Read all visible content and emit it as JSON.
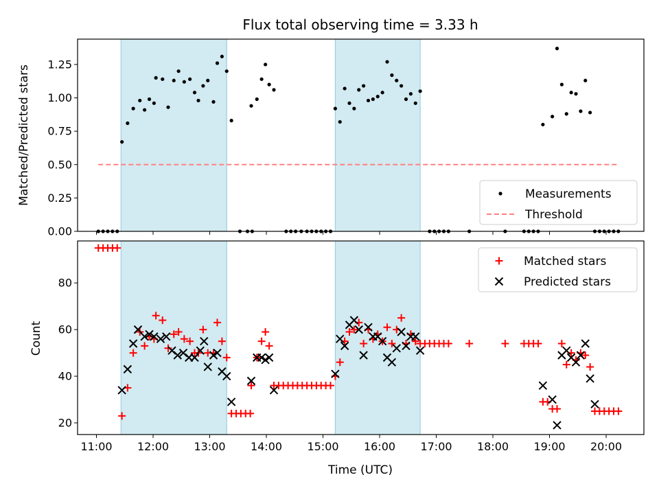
{
  "chart_data": [
    {
      "type": "scatter",
      "title": "Flux total observing time = 3.33 h",
      "xlabel": "",
      "ylabel": "Matched/Predicted stars",
      "xlim": [
        "10:40",
        "20:40"
      ],
      "ylim": [
        0,
        1.44
      ],
      "y_ticks": [
        "0.00",
        "0.25",
        "0.50",
        "0.75",
        "1.00",
        "1.25"
      ],
      "shaded_intervals": [
        [
          "11:26",
          "13:18"
        ],
        [
          "15:13",
          "16:43"
        ]
      ],
      "shade_color": "#add8e6",
      "legend_position": "lower-right",
      "series": [
        {
          "name": "Measurements",
          "marker": "dot",
          "color": "#000000",
          "points": [
            [
              "11:02",
              0
            ],
            [
              "11:07",
              0
            ],
            [
              "11:12",
              0
            ],
            [
              "11:17",
              0
            ],
            [
              "11:22",
              0
            ],
            [
              "11:27",
              0.67
            ],
            [
              "11:33",
              0.81
            ],
            [
              "11:39",
              0.92
            ],
            [
              "11:46",
              0.98
            ],
            [
              "11:51",
              0.91
            ],
            [
              "11:56",
              0.99
            ],
            [
              "12:01",
              0.96
            ],
            [
              "12:03",
              1.15
            ],
            [
              "12:10",
              1.14
            ],
            [
              "12:16",
              0.93
            ],
            [
              "12:22",
              1.13
            ],
            [
              "12:27",
              1.2
            ],
            [
              "12:33",
              1.12
            ],
            [
              "12:39",
              1.14
            ],
            [
              "12:44",
              1.04
            ],
            [
              "12:48",
              0.98
            ],
            [
              "12:53",
              1.09
            ],
            [
              "12:58",
              1.13
            ],
            [
              "13:04",
              0.97
            ],
            [
              "13:08",
              1.26
            ],
            [
              "13:13",
              1.31
            ],
            [
              "13:18",
              1.2
            ],
            [
              "13:23",
              0.83
            ],
            [
              "13:32",
              0
            ],
            [
              "13:40",
              0
            ],
            [
              "13:45",
              0
            ],
            [
              "13:44",
              0.94
            ],
            [
              "13:50",
              0.99
            ],
            [
              "13:55",
              1.14
            ],
            [
              "13:59",
              1.25
            ],
            [
              "14:03",
              1.1
            ],
            [
              "14:08",
              1.06
            ],
            [
              "14:21",
              0
            ],
            [
              "14:26",
              0
            ],
            [
              "14:31",
              0
            ],
            [
              "14:37",
              0
            ],
            [
              "14:43",
              0
            ],
            [
              "14:48",
              0
            ],
            [
              "14:53",
              0
            ],
            [
              "14:58",
              0
            ],
            [
              "15:03",
              0
            ],
            [
              "15:08",
              0
            ],
            [
              "15:13",
              0.92
            ],
            [
              "15:18",
              0.82
            ],
            [
              "15:23",
              1.07
            ],
            [
              "15:28",
              0.96
            ],
            [
              "15:33",
              0.92
            ],
            [
              "15:38",
              1.06
            ],
            [
              "15:43",
              1.09
            ],
            [
              "15:48",
              0.98
            ],
            [
              "15:53",
              0.99
            ],
            [
              "15:58",
              1.01
            ],
            [
              "16:03",
              1.04
            ],
            [
              "16:08",
              1.27
            ],
            [
              "16:13",
              1.17
            ],
            [
              "16:18",
              1.13
            ],
            [
              "16:23",
              1.09
            ],
            [
              "16:28",
              0.99
            ],
            [
              "16:33",
              1.03
            ],
            [
              "16:38",
              0.96
            ],
            [
              "16:43",
              1.05
            ],
            [
              "16:53",
              0
            ],
            [
              "16:58",
              0
            ],
            [
              "17:03",
              0
            ],
            [
              "17:08",
              0
            ],
            [
              "17:13",
              0
            ],
            [
              "17:35",
              0
            ],
            [
              "18:13",
              0
            ],
            [
              "18:33",
              0
            ],
            [
              "18:38",
              0
            ],
            [
              "18:43",
              0
            ],
            [
              "18:48",
              0
            ],
            [
              "18:53",
              0.8
            ],
            [
              "19:03",
              0.86
            ],
            [
              "19:08",
              1.37
            ],
            [
              "19:13",
              1.1
            ],
            [
              "19:18",
              0.88
            ],
            [
              "19:23",
              1.04
            ],
            [
              "19:28",
              1.03
            ],
            [
              "19:33",
              0.9
            ],
            [
              "19:38",
              1.13
            ],
            [
              "19:43",
              0.89
            ],
            [
              "19:48",
              0
            ],
            [
              "19:53",
              0
            ],
            [
              "19:58",
              0
            ],
            [
              "20:03",
              0
            ],
            [
              "20:08",
              0
            ],
            [
              "20:13",
              0
            ]
          ]
        },
        {
          "name": "Threshold",
          "marker": "dashed-line",
          "color": "#ff8080",
          "points": [
            [
              "11:02",
              0.5
            ],
            [
              "20:13",
              0.5
            ]
          ]
        }
      ]
    },
    {
      "type": "scatter",
      "title": "",
      "xlabel": "Time (UTC)",
      "ylabel": "Count",
      "xlim": [
        "10:40",
        "20:40"
      ],
      "ylim": [
        15,
        98
      ],
      "y_ticks": [
        "20",
        "40",
        "60",
        "80"
      ],
      "x_ticks": [
        "11:00",
        "12:00",
        "13:00",
        "14:00",
        "15:00",
        "16:00",
        "17:00",
        "18:00",
        "19:00",
        "20:00"
      ],
      "shaded_intervals": [
        [
          "11:26",
          "13:18"
        ],
        [
          "15:13",
          "16:43"
        ]
      ],
      "shade_color": "#add8e6",
      "legend_position": "upper-right",
      "series": [
        {
          "name": "Matched stars",
          "marker": "plus",
          "color": "#ff0000",
          "points": [
            [
              "11:02",
              95
            ],
            [
              "11:07",
              95
            ],
            [
              "11:12",
              95
            ],
            [
              "11:17",
              95
            ],
            [
              "11:22",
              95
            ],
            [
              "11:27",
              23
            ],
            [
              "11:33",
              35
            ],
            [
              "11:39",
              50
            ],
            [
              "11:46",
              59
            ],
            [
              "11:51",
              53
            ],
            [
              "11:56",
              57
            ],
            [
              "12:01",
              56
            ],
            [
              "12:03",
              66
            ],
            [
              "12:10",
              64
            ],
            [
              "12:16",
              52
            ],
            [
              "12:22",
              58
            ],
            [
              "12:27",
              59
            ],
            [
              "12:33",
              56
            ],
            [
              "12:39",
              55
            ],
            [
              "12:44",
              50
            ],
            [
              "12:48",
              50
            ],
            [
              "12:53",
              60
            ],
            [
              "12:58",
              50
            ],
            [
              "13:04",
              50
            ],
            [
              "13:08",
              63
            ],
            [
              "13:13",
              55
            ],
            [
              "13:18",
              48
            ],
            [
              "13:23",
              24
            ],
            [
              "13:28",
              24
            ],
            [
              "13:33",
              24
            ],
            [
              "13:38",
              24
            ],
            [
              "13:43",
              24
            ],
            [
              "13:44",
              36
            ],
            [
              "13:50",
              48
            ],
            [
              "13:55",
              55
            ],
            [
              "13:59",
              59
            ],
            [
              "14:03",
              53
            ],
            [
              "14:08",
              36
            ],
            [
              "14:13",
              36
            ],
            [
              "14:18",
              36
            ],
            [
              "14:23",
              36
            ],
            [
              "14:28",
              36
            ],
            [
              "14:33",
              36
            ],
            [
              "14:38",
              36
            ],
            [
              "14:43",
              36
            ],
            [
              "14:48",
              36
            ],
            [
              "14:53",
              36
            ],
            [
              "14:58",
              36
            ],
            [
              "15:03",
              36
            ],
            [
              "15:08",
              36
            ],
            [
              "15:13",
              40
            ],
            [
              "15:18",
              46
            ],
            [
              "15:23",
              55
            ],
            [
              "15:28",
              59
            ],
            [
              "15:33",
              60
            ],
            [
              "15:38",
              63
            ],
            [
              "15:43",
              54
            ],
            [
              "15:48",
              60
            ],
            [
              "15:53",
              56
            ],
            [
              "15:58",
              58
            ],
            [
              "16:03",
              55
            ],
            [
              "16:08",
              61
            ],
            [
              "16:13",
              54
            ],
            [
              "16:18",
              60
            ],
            [
              "16:23",
              65
            ],
            [
              "16:28",
              54
            ],
            [
              "16:33",
              58
            ],
            [
              "16:38",
              55
            ],
            [
              "16:43",
              54
            ],
            [
              "16:48",
              54
            ],
            [
              "16:53",
              54
            ],
            [
              "16:58",
              54
            ],
            [
              "17:03",
              54
            ],
            [
              "17:08",
              54
            ],
            [
              "17:13",
              54
            ],
            [
              "17:35",
              54
            ],
            [
              "18:13",
              54
            ],
            [
              "18:33",
              54
            ],
            [
              "18:38",
              54
            ],
            [
              "18:43",
              54
            ],
            [
              "18:48",
              54
            ],
            [
              "18:53",
              29
            ],
            [
              "18:58",
              29
            ],
            [
              "19:03",
              26
            ],
            [
              "19:08",
              26
            ],
            [
              "19:13",
              54
            ],
            [
              "19:18",
              45
            ],
            [
              "19:23",
              50
            ],
            [
              "19:28",
              47
            ],
            [
              "19:33",
              50
            ],
            [
              "19:38",
              49
            ],
            [
              "19:43",
              44
            ],
            [
              "19:48",
              25
            ],
            [
              "19:53",
              25
            ],
            [
              "19:58",
              25
            ],
            [
              "20:03",
              25
            ],
            [
              "20:08",
              25
            ],
            [
              "20:13",
              25
            ]
          ]
        },
        {
          "name": "Predicted stars",
          "marker": "x",
          "color": "#000000",
          "points": [
            [
              "11:27",
              34
            ],
            [
              "11:33",
              43
            ],
            [
              "11:39",
              54
            ],
            [
              "11:44",
              60
            ],
            [
              "11:51",
              57
            ],
            [
              "11:56",
              58
            ],
            [
              "12:01",
              57
            ],
            [
              "12:08",
              56
            ],
            [
              "12:14",
              57
            ],
            [
              "12:20",
              51
            ],
            [
              "12:26",
              49
            ],
            [
              "12:32",
              50
            ],
            [
              "12:38",
              48
            ],
            [
              "12:44",
              48
            ],
            [
              "12:50",
              51
            ],
            [
              "12:54",
              55
            ],
            [
              "12:58",
              44
            ],
            [
              "13:04",
              49
            ],
            [
              "13:08",
              50
            ],
            [
              "13:13",
              42
            ],
            [
              "13:18",
              40
            ],
            [
              "13:23",
              29
            ],
            [
              "13:44",
              38
            ],
            [
              "13:50",
              48
            ],
            [
              "13:55",
              48
            ],
            [
              "13:59",
              47
            ],
            [
              "14:03",
              48
            ],
            [
              "14:08",
              34
            ],
            [
              "15:13",
              41
            ],
            [
              "15:18",
              56
            ],
            [
              "15:23",
              53
            ],
            [
              "15:28",
              62
            ],
            [
              "15:33",
              64
            ],
            [
              "15:38",
              60
            ],
            [
              "15:43",
              49
            ],
            [
              "15:48",
              61
            ],
            [
              "15:53",
              57
            ],
            [
              "15:58",
              57
            ],
            [
              "16:03",
              55
            ],
            [
              "16:08",
              48
            ],
            [
              "16:13",
              46
            ],
            [
              "16:18",
              52
            ],
            [
              "16:23",
              59
            ],
            [
              "16:28",
              53
            ],
            [
              "16:33",
              57
            ],
            [
              "16:38",
              57
            ],
            [
              "16:43",
              51
            ],
            [
              "18:53",
              36
            ],
            [
              "19:03",
              30
            ],
            [
              "19:08",
              19
            ],
            [
              "19:13",
              49
            ],
            [
              "19:18",
              51
            ],
            [
              "19:23",
              48
            ],
            [
              "19:28",
              46
            ],
            [
              "19:33",
              49
            ],
            [
              "19:38",
              54
            ],
            [
              "19:43",
              39
            ],
            [
              "19:48",
              28
            ]
          ]
        }
      ]
    }
  ]
}
